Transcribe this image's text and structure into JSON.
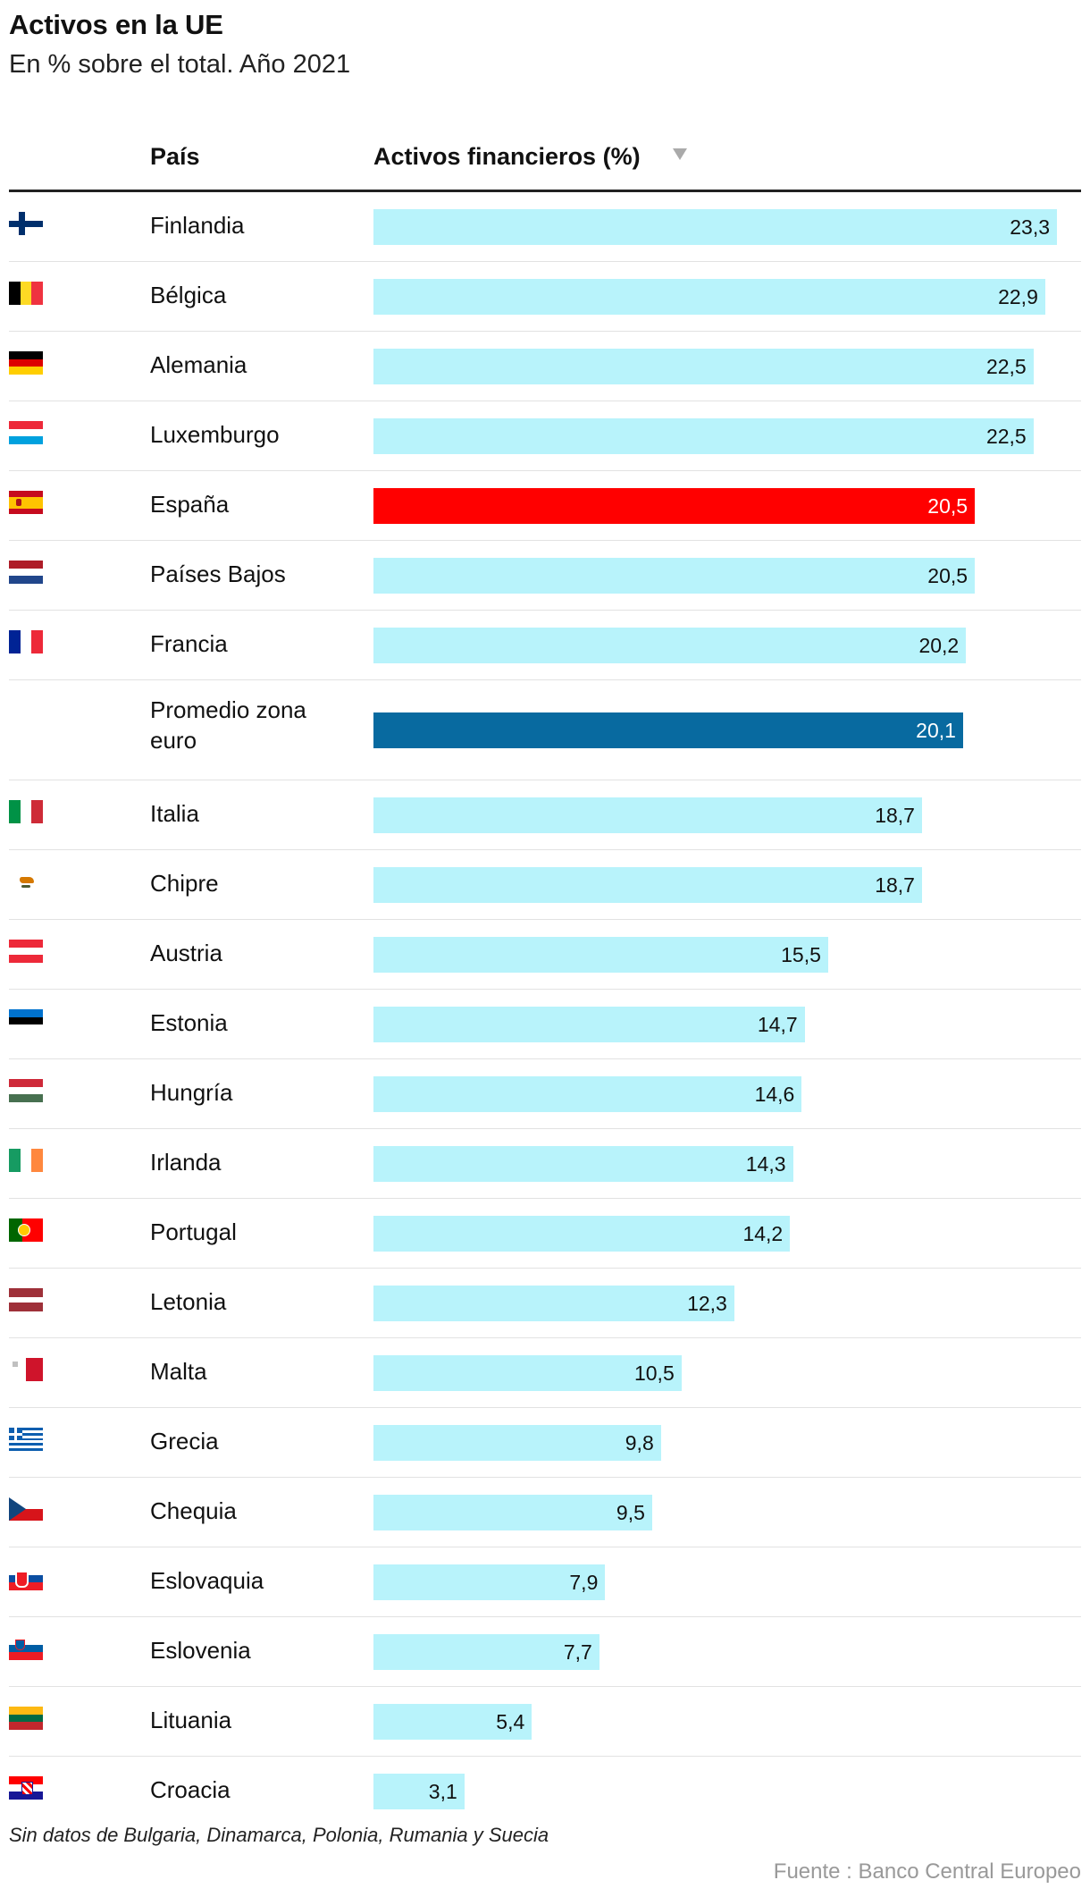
{
  "header": {
    "title": "Activos en la UE",
    "subtitle": "En % sobre el total. Año 2021",
    "col_country": "País",
    "col_value": "Activos financieros (%)"
  },
  "colors": {
    "default_bar": "#b8f3fb",
    "spain_bar": "#ff0000",
    "average_bar": "#086aa0"
  },
  "chart_data": {
    "type": "bar",
    "orientation": "horizontal",
    "categories": [
      "Finlandia",
      "Bélgica",
      "Alemania",
      "Luxemburgo",
      "España",
      "Países Bajos",
      "Francia",
      "Promedio zona euro",
      "Italia",
      "Chipre",
      "Austria",
      "Estonia",
      "Hungría",
      "Irlanda",
      "Portugal",
      "Letonia",
      "Malta",
      "Grecia",
      "Chequia",
      "Eslovaquia",
      "Eslovenia",
      "Lituania",
      "Croacia"
    ],
    "values": [
      23.3,
      22.9,
      22.5,
      22.5,
      20.5,
      20.5,
      20.2,
      20.1,
      18.7,
      18.7,
      15.5,
      14.7,
      14.6,
      14.3,
      14.2,
      12.3,
      10.5,
      9.8,
      9.5,
      7.9,
      7.7,
      5.4,
      3.1
    ],
    "value_labels": [
      "23,3",
      "22,9",
      "22,5",
      "22,5",
      "20,5",
      "20,5",
      "20,2",
      "20,1",
      "18,7",
      "18,7",
      "15,5",
      "14,7",
      "14,6",
      "14,3",
      "14,2",
      "12,3",
      "10,5",
      "9,8",
      "9,5",
      "7,9",
      "7,7",
      "5,4",
      "3,1"
    ],
    "flags": [
      "finland-flag",
      "belgium-flag",
      "germany-flag",
      "luxembourg-flag",
      "spain-flag",
      "netherlands-flag",
      "france-flag",
      "",
      "italy-flag",
      "cyprus-flag",
      "austria-flag",
      "estonia-flag",
      "hungary-flag",
      "ireland-flag",
      "portugal-flag",
      "latvia-flag",
      "malta-flag",
      "greece-flag",
      "czechia-flag",
      "slovakia-flag",
      "slovenia-flag",
      "lithuania-flag",
      "croatia-flag"
    ],
    "highlight": {
      "España": "spain_bar",
      "Promedio zona euro": "average_bar"
    },
    "sort": "descending",
    "xlim": [
      0,
      23.3
    ]
  },
  "footer": {
    "note": "Sin datos de Bulgaria, Dinamarca, Polonia, Rumania y Suecia",
    "source": "Fuente : Banco Central Europeo"
  }
}
